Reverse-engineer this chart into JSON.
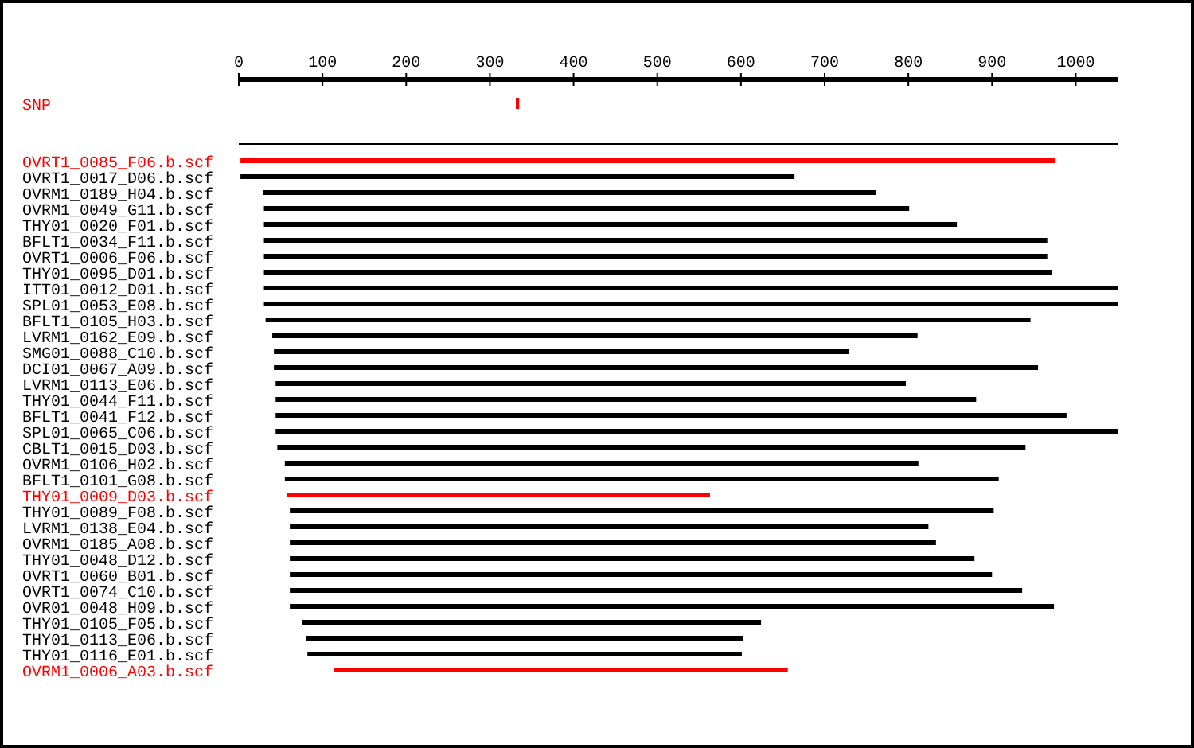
{
  "chart_data": {
    "type": "bar",
    "orientation": "horizontal",
    "categories": [
      "SNP",
      null,
      "OVRT1_0085_F06.b.scf",
      "OVRT1_0017_D06.b.scf",
      "OVRM1_0189_H04.b.scf",
      "OVRM1_0049_G11.b.scf",
      "THY01_0020_F01.b.scf",
      "BFLT1_0034_F11.b.scf",
      "OVRT1_0006_F06.b.scf",
      "THY01_0095_D01.b.scf",
      "ITT01_0012_D01.b.scf",
      "SPL01_0053_E08.b.scf",
      "BFLT1_0105_H03.b.scf",
      "LVRM1_0162_E09.b.scf",
      "SMG01_0088_C10.b.scf",
      "DCI01_0067_A09.b.scf",
      "LVRM1_0113_E06.b.scf",
      "THY01_0044_F11.b.scf",
      "BFLT1_0041_F12.b.scf",
      "SPL01_0065_C06.b.scf",
      "CBLT1_0015_D03.b.scf",
      "OVRM1_0106_H02.b.scf",
      "BFLT1_0101_G08.b.scf",
      "THY01_0009_D03.b.scf",
      "THY01_0089_F08.b.scf",
      "LVRM1_0138_E04.b.scf",
      "OVRM1_0185_A08.b.scf",
      "THY01_0048_D12.b.scf",
      "OVRT1_0060_B01.b.scf",
      "OVRT1_0074_C10.b.scf",
      "OVR01_0048_H09.b.scf",
      "THY01_0105_F05.b.scf",
      "THY01_0113_E06.b.scf",
      "THY01_0116_E01.b.scf",
      "OVRM1_0006_A03.b.scf"
    ],
    "base": [
      331,
      0,
      2,
      2,
      29,
      30,
      30,
      30,
      30,
      30,
      30,
      30,
      32,
      40,
      42,
      42,
      44,
      44,
      44,
      44,
      46,
      55,
      55,
      57,
      61,
      61,
      61,
      61,
      61,
      61,
      61,
      76,
      80,
      82,
      114
    ],
    "values": [
      4,
      1050,
      973,
      662,
      732,
      771,
      828,
      936,
      936,
      942,
      1020,
      1020,
      914,
      771,
      687,
      913,
      753,
      837,
      945,
      1006,
      894,
      757,
      853,
      506,
      841,
      763,
      772,
      818,
      839,
      875,
      913,
      548,
      523,
      519,
      542
    ],
    "colors": [
      "#ff0000",
      "#000000",
      "#ff0000",
      "#000000",
      "#000000",
      "#000000",
      "#000000",
      "#000000",
      "#000000",
      "#000000",
      "#000000",
      "#000000",
      "#000000",
      "#000000",
      "#000000",
      "#000000",
      "#000000",
      "#000000",
      "#000000",
      "#000000",
      "#000000",
      "#000000",
      "#000000",
      "#ff0000",
      "#000000",
      "#000000",
      "#000000",
      "#000000",
      "#000000",
      "#000000",
      "#000000",
      "#000000",
      "#000000",
      "#000000",
      "#ff0000"
    ],
    "xlim": [
      0,
      1050
    ],
    "xticks": [
      0,
      100,
      200,
      300,
      400,
      500,
      600,
      700,
      800,
      900,
      1000
    ],
    "grid": false
  }
}
